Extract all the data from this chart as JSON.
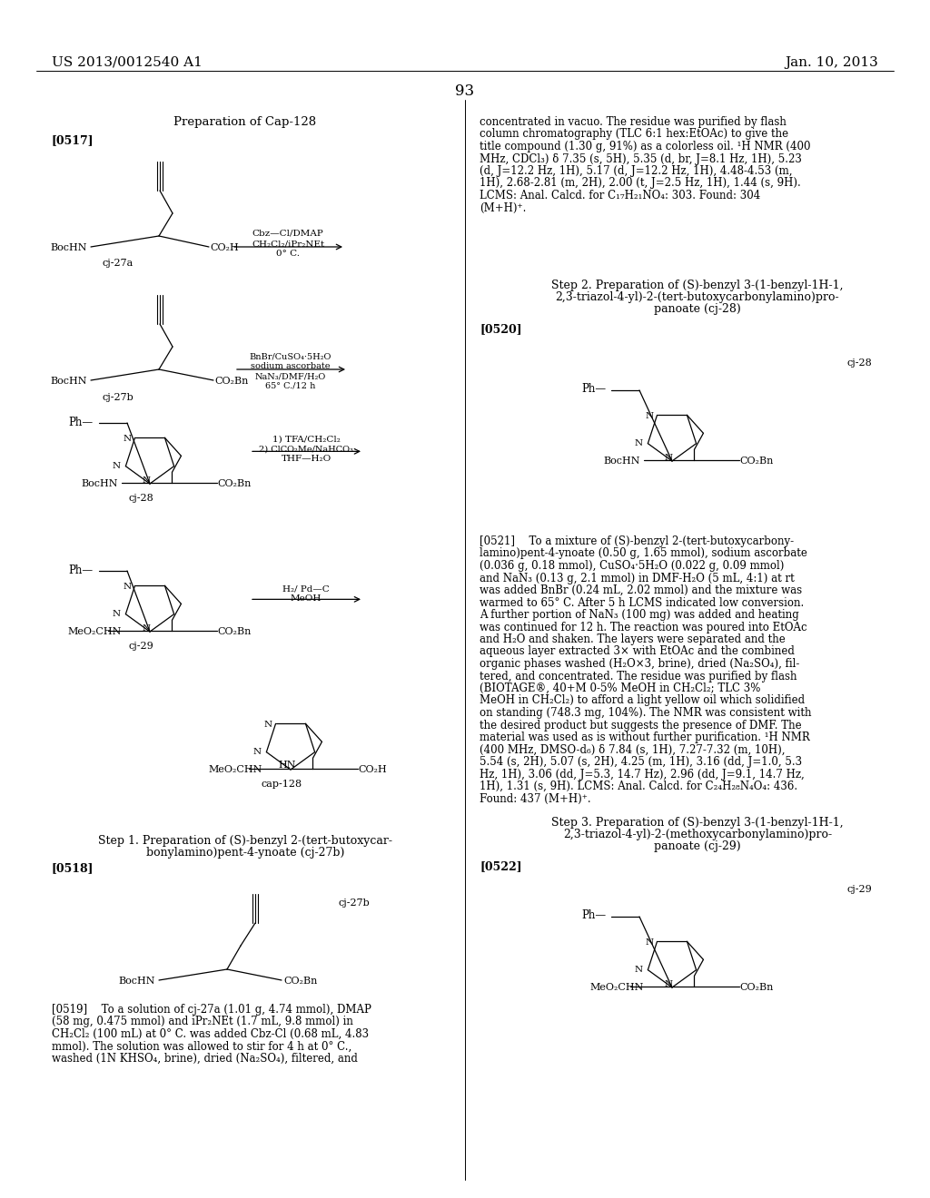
{
  "background_color": "#ffffff",
  "header_left": "US 2013/0012540 A1",
  "header_right": "Jan. 10, 2013",
  "page_number": "93",
  "title": "Preparation of Cap-128",
  "tag_0517": "[0517]",
  "tag_0518": "[0518]",
  "tag_0519": "[0519]",
  "tag_0520": "[0520]",
  "tag_0521": "[0521]",
  "tag_0522": "[0522]",
  "step1_title_line1": "Step 1. Preparation of (S)-benzyl 2-(tert-butoxycar-",
  "step1_title_line2": "bonylamino)pent-4-ynoate (cj-27b)",
  "step2_title_line1": "Step 2. Preparation of (S)-benzyl 3-(1-benzyl-1H-1,",
  "step2_title_line2": "2,3-triazol-4-yl)-2-(tert-butoxycarbonylamino)pro-",
  "step2_title_line3": "panoate (cj-28)",
  "step3_title_line1": "Step 3. Preparation of (S)-benzyl 3-(1-benzyl-1H-1,",
  "step3_title_line2": "2,3-triazol-4-yl)-2-(methoxycarbonylamino)pro-",
  "step3_title_line3": "panoate (cj-29)",
  "para_0519_right_lines": [
    "concentrated in vacuo. The residue was purified by flash",
    "column chromatography (TLC 6:1 hex:EtOAc) to give the",
    "title compound (1.30 g, 91%) as a colorless oil. ¹H NMR (400",
    "MHz, CDCl₃) δ 7.35 (s, 5H), 5.35 (d, br, J=8.1 Hz, 1H), 5.23",
    "(d, J=12.2 Hz, 1H), 5.17 (d, J=12.2 Hz, 1H), 4.48-4.53 (m,",
    "1H), 2.68-2.81 (m, 2H), 2.00 (t, J=2.5 Hz, 1H), 1.44 (s, 9H).",
    "LCMS: Anal. Calcd. for C₁₇H₂₁NO₄: 303. Found: 304",
    "(M+H)⁺."
  ],
  "para_0521_lines": [
    "[0521]  To a mixture of (S)-benzyl 2-(tert-butoxycarbony-",
    "lamino)pent-4-ynoate (0.50 g, 1.65 mmol), sodium ascorbate",
    "(0.036 g, 0.18 mmol), CuSO₄·5H₂O (0.022 g, 0.09 mmol)",
    "and NaN₃ (0.13 g, 2.1 mmol) in DMF-H₂O (5 mL, 4:1) at rt",
    "was added BnBr (0.24 mL, 2.02 mmol) and the mixture was",
    "warmed to 65° C. After 5 h LCMS indicated low conversion.",
    "A further portion of NaN₃ (100 mg) was added and heating",
    "was continued for 12 h. The reaction was poured into EtOAc",
    "and H₂O and shaken. The layers were separated and the",
    "aqueous layer extracted 3× with EtOAc and the combined",
    "organic phases washed (H₂O×3, brine), dried (Na₂SO₄), fil-",
    "tered, and concentrated. The residue was purified by flash",
    "(BIOTAGE®, 40+M 0-5% MeOH in CH₂Cl₂; TLC 3%",
    "MeOH in CH₂Cl₂) to afford a light yellow oil which solidified",
    "on standing (748.3 mg, 104%). The NMR was consistent with",
    "the desired product but suggests the presence of DMF. The",
    "material was used as is without further purification. ¹H NMR",
    "(400 MHz, DMSO-d₆) δ 7.84 (s, 1H), 7.27-7.32 (m, 10H),",
    "5.54 (s, 2H), 5.07 (s, 2H), 4.25 (m, 1H), 3.16 (dd, J=1.0, 5.3",
    "Hz, 1H), 3.06 (dd, J=5.3, 14.7 Hz), 2.96 (dd, J=9.1, 14.7 Hz,",
    "1H), 1.31 (s, 9H). LCMS: Anal. Calcd. for C₂₄H₂₈N₄O₄: 436.",
    "Found: 437 (M+H)⁺."
  ],
  "para_0519_left_lines": [
    "[0519]  To a solution of cj-27a (1.01 g, 4.74 mmol), DMAP",
    "(58 mg, 0.475 mmol) and iPr₂NEt (1.7 mL, 9.8 mmol) in",
    "CH₂Cl₂ (100 mL) at 0° C. was added Cbz-Cl (0.68 mL, 4.83",
    "mmol). The solution was allowed to stir for 4 h at 0° C.,",
    "washed (1N KHSO₄, brine), dried (Na₂SO₄), filtered, and"
  ]
}
